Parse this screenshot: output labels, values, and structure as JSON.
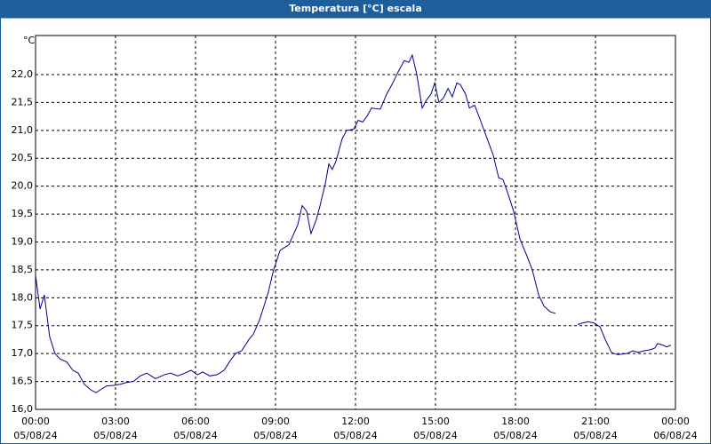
{
  "chart_data": {
    "type": "line",
    "title": "Temperatura [°C] escala",
    "y_label": "°C",
    "x": [
      0,
      0.17,
      0.33,
      0.53,
      0.73,
      0.93,
      1.17,
      1.4,
      1.6,
      1.83,
      2.07,
      2.27,
      2.43,
      2.67,
      2.93,
      3.17,
      3.4,
      3.67,
      3.93,
      4.17,
      4.5,
      4.83,
      5.07,
      5.33,
      5.6,
      5.83,
      6.07,
      6.27,
      6.53,
      6.8,
      7.07,
      7.27,
      7.5,
      7.73,
      8,
      8.17,
      8.4,
      8.6,
      8.73,
      8.93,
      9.17,
      9.5,
      9.83,
      10,
      10.17,
      10.33,
      10.53,
      10.67,
      10.87,
      11,
      11.13,
      11.27,
      11.5,
      11.67,
      11.93,
      12.1,
      12.27,
      12.43,
      12.6,
      12.93,
      13.17,
      13.4,
      13.6,
      13.83,
      14,
      14.13,
      14.3,
      14.5,
      14.67,
      14.83,
      14.97,
      15.13,
      15.3,
      15.47,
      15.63,
      15.8,
      15.93,
      16.13,
      16.27,
      16.47,
      16.67,
      16.9,
      17.17,
      17.37,
      17.53,
      17.73,
      17.93,
      18.17,
      18.43,
      18.63,
      18.87,
      19.07,
      19.3,
      19.5,
      20,
      20.33,
      20.53,
      20.73,
      20.93,
      21.17,
      21.37,
      21.6,
      21.83,
      22.17,
      22.4,
      22.6,
      22.83,
      23.07,
      23.23,
      23.33,
      23.53,
      23.67,
      23.83
    ],
    "values": [
      18.4,
      17.8,
      18.05,
      17.3,
      17.0,
      16.9,
      16.85,
      16.7,
      16.65,
      16.45,
      16.35,
      16.3,
      16.35,
      16.42,
      16.43,
      16.45,
      16.48,
      16.5,
      16.6,
      16.65,
      16.55,
      16.62,
      16.65,
      16.6,
      16.65,
      16.7,
      16.62,
      16.67,
      16.6,
      16.62,
      16.7,
      16.85,
      17.0,
      17.05,
      17.25,
      17.35,
      17.6,
      17.9,
      18.1,
      18.5,
      18.85,
      18.95,
      19.3,
      19.65,
      19.55,
      19.15,
      19.4,
      19.65,
      20.05,
      20.4,
      20.3,
      20.45,
      20.85,
      21.0,
      21.02,
      21.18,
      21.15,
      21.25,
      21.4,
      21.38,
      21.65,
      21.85,
      22.05,
      22.25,
      22.22,
      22.35,
      22.0,
      21.4,
      21.55,
      21.65,
      21.85,
      21.5,
      21.58,
      21.75,
      21.6,
      21.85,
      21.82,
      21.65,
      21.4,
      21.45,
      21.2,
      20.9,
      20.55,
      20.15,
      20.12,
      19.85,
      19.55,
      19.05,
      18.75,
      18.5,
      18.05,
      17.85,
      17.75,
      17.72,
      null,
      17.52,
      17.55,
      17.57,
      17.55,
      17.48,
      17.25,
      17.02,
      16.98,
      17.0,
      17.05,
      17.02,
      17.05,
      17.07,
      17.1,
      17.18,
      17.15,
      17.12,
      17.15
    ],
    "color": "#00008b",
    "xlim": [
      0,
      24
    ],
    "xticks": [
      {
        "value": 0,
        "label": "00:00",
        "date": "05/08/24"
      },
      {
        "value": 3,
        "label": "03:00",
        "date": "05/08/24"
      },
      {
        "value": 6,
        "label": "06:00",
        "date": "05/08/24"
      },
      {
        "value": 9,
        "label": "09:00",
        "date": "05/08/24"
      },
      {
        "value": 12,
        "label": "12:00",
        "date": "05/08/24"
      },
      {
        "value": 15,
        "label": "15:00",
        "date": "05/08/24"
      },
      {
        "value": 18,
        "label": "18:00",
        "date": "05/08/24"
      },
      {
        "value": 21,
        "label": "21:00",
        "date": "05/08/24"
      },
      {
        "value": 24,
        "label": "00:00",
        "date": "06/08/24"
      }
    ],
    "ylim": [
      16,
      22.7
    ],
    "yticks": [
      {
        "value": 16,
        "label": "16,0"
      },
      {
        "value": 16.5,
        "label": "16,5"
      },
      {
        "value": 17,
        "label": "17,0"
      },
      {
        "value": 17.5,
        "label": "17,5"
      },
      {
        "value": 18,
        "label": "18,0"
      },
      {
        "value": 18.5,
        "label": "18,5"
      },
      {
        "value": 19,
        "label": "19,0"
      },
      {
        "value": 19.5,
        "label": "19,5"
      },
      {
        "value": 20,
        "label": "20,0"
      },
      {
        "value": 20.5,
        "label": "20,5"
      },
      {
        "value": 21,
        "label": "21,0"
      },
      {
        "value": 21.5,
        "label": "21,5"
      },
      {
        "value": 22,
        "label": "22,0"
      }
    ],
    "grid": true
  }
}
